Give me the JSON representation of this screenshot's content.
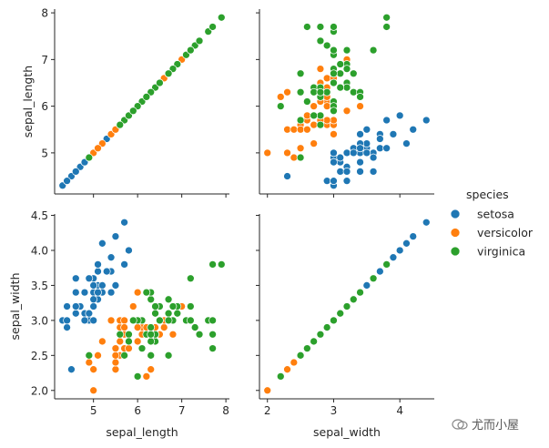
{
  "chart_data": {
    "type": "scatter",
    "title": "",
    "legend": {
      "title": "species",
      "placement": "center-right",
      "entries": [
        {
          "name": "setosa",
          "color": "#1f77b4"
        },
        {
          "name": "versicolor",
          "color": "#ff7f0e"
        },
        {
          "name": "virginica",
          "color": "#2ca02c"
        }
      ]
    },
    "variables": [
      "sepal_length",
      "sepal_width"
    ],
    "axes": {
      "sepal_length": {
        "ticks": [
          5,
          6,
          7,
          8
        ],
        "tick_labels": [
          "5",
          "6",
          "7",
          "8"
        ],
        "lim": [
          4.12,
          8.08
        ]
      },
      "sepal_width": {
        "ticks": [
          2,
          3,
          4
        ],
        "tick_labels": [
          "2",
          "3",
          "4"
        ],
        "lim": [
          1.88,
          4.52
        ],
        "ticks_y": [
          2.0,
          2.5,
          3.0,
          3.5,
          4.0,
          4.5
        ],
        "tick_labels_y": [
          "2.0",
          "2.5",
          "3.0",
          "3.5",
          "4.0",
          "4.5"
        ]
      }
    },
    "grid": false,
    "series": [
      {
        "name": "setosa",
        "points": [
          [
            5.1,
            3.5
          ],
          [
            4.9,
            3.0
          ],
          [
            4.7,
            3.2
          ],
          [
            4.6,
            3.1
          ],
          [
            5.0,
            3.6
          ],
          [
            5.4,
            3.9
          ],
          [
            4.6,
            3.4
          ],
          [
            5.0,
            3.4
          ],
          [
            4.4,
            2.9
          ],
          [
            4.9,
            3.1
          ],
          [
            5.4,
            3.7
          ],
          [
            4.8,
            3.4
          ],
          [
            4.8,
            3.0
          ],
          [
            4.3,
            3.0
          ],
          [
            5.8,
            4.0
          ],
          [
            5.7,
            4.4
          ],
          [
            5.4,
            3.9
          ],
          [
            5.1,
            3.5
          ],
          [
            5.7,
            3.8
          ],
          [
            5.1,
            3.8
          ],
          [
            5.4,
            3.4
          ],
          [
            5.1,
            3.7
          ],
          [
            4.6,
            3.6
          ],
          [
            5.1,
            3.3
          ],
          [
            4.8,
            3.4
          ],
          [
            5.0,
            3.0
          ],
          [
            5.0,
            3.4
          ],
          [
            5.2,
            3.5
          ],
          [
            5.2,
            3.4
          ],
          [
            4.7,
            3.2
          ],
          [
            4.8,
            3.1
          ],
          [
            5.4,
            3.4
          ],
          [
            5.2,
            4.1
          ],
          [
            5.5,
            4.2
          ],
          [
            4.9,
            3.1
          ],
          [
            5.0,
            3.2
          ],
          [
            5.5,
            3.5
          ],
          [
            4.9,
            3.6
          ],
          [
            4.4,
            3.0
          ],
          [
            5.1,
            3.4
          ],
          [
            5.0,
            3.5
          ],
          [
            4.5,
            2.3
          ],
          [
            4.4,
            3.2
          ],
          [
            5.0,
            3.5
          ],
          [
            5.1,
            3.8
          ],
          [
            4.8,
            3.0
          ],
          [
            5.1,
            3.8
          ],
          [
            4.6,
            3.2
          ],
          [
            5.3,
            3.7
          ],
          [
            5.0,
            3.3
          ]
        ]
      },
      {
        "name": "versicolor",
        "points": [
          [
            7.0,
            3.2
          ],
          [
            6.4,
            3.2
          ],
          [
            6.9,
            3.1
          ],
          [
            5.5,
            2.3
          ],
          [
            6.5,
            2.8
          ],
          [
            5.7,
            2.8
          ],
          [
            6.3,
            3.3
          ],
          [
            4.9,
            2.4
          ],
          [
            6.6,
            2.9
          ],
          [
            5.2,
            2.7
          ],
          [
            5.0,
            2.0
          ],
          [
            5.9,
            3.0
          ],
          [
            6.0,
            2.2
          ],
          [
            6.1,
            2.9
          ],
          [
            5.6,
            2.9
          ],
          [
            6.7,
            3.1
          ],
          [
            5.6,
            3.0
          ],
          [
            5.8,
            2.7
          ],
          [
            6.2,
            2.2
          ],
          [
            5.6,
            2.5
          ],
          [
            5.9,
            3.2
          ],
          [
            6.1,
            2.8
          ],
          [
            6.3,
            2.5
          ],
          [
            6.1,
            2.8
          ],
          [
            6.4,
            2.9
          ],
          [
            6.6,
            3.0
          ],
          [
            6.8,
            2.8
          ],
          [
            6.7,
            3.0
          ],
          [
            6.0,
            2.9
          ],
          [
            5.7,
            2.6
          ],
          [
            5.5,
            2.4
          ],
          [
            5.5,
            2.4
          ],
          [
            5.8,
            2.7
          ],
          [
            6.0,
            2.7
          ],
          [
            5.4,
            3.0
          ],
          [
            6.0,
            3.4
          ],
          [
            6.7,
            3.1
          ],
          [
            6.3,
            2.3
          ],
          [
            5.6,
            3.0
          ],
          [
            5.5,
            2.5
          ],
          [
            5.5,
            2.6
          ],
          [
            6.1,
            3.0
          ],
          [
            5.8,
            2.6
          ],
          [
            5.0,
            2.3
          ],
          [
            5.6,
            2.7
          ],
          [
            5.7,
            3.0
          ],
          [
            5.7,
            2.9
          ],
          [
            6.2,
            2.9
          ],
          [
            5.1,
            2.5
          ],
          [
            5.7,
            2.8
          ]
        ]
      },
      {
        "name": "virginica",
        "points": [
          [
            6.3,
            3.3
          ],
          [
            5.8,
            2.7
          ],
          [
            7.1,
            3.0
          ],
          [
            6.3,
            2.9
          ],
          [
            6.5,
            3.0
          ],
          [
            7.6,
            3.0
          ],
          [
            4.9,
            2.5
          ],
          [
            7.3,
            2.9
          ],
          [
            6.7,
            2.5
          ],
          [
            7.2,
            3.6
          ],
          [
            6.5,
            3.2
          ],
          [
            6.4,
            2.7
          ],
          [
            6.8,
            3.0
          ],
          [
            5.7,
            2.5
          ],
          [
            5.8,
            2.8
          ],
          [
            6.4,
            3.2
          ],
          [
            6.5,
            3.0
          ],
          [
            7.7,
            3.8
          ],
          [
            7.7,
            2.6
          ],
          [
            6.0,
            2.2
          ],
          [
            6.9,
            3.2
          ],
          [
            5.6,
            2.8
          ],
          [
            7.7,
            2.8
          ],
          [
            6.3,
            2.7
          ],
          [
            6.7,
            3.3
          ],
          [
            7.2,
            3.2
          ],
          [
            6.2,
            2.8
          ],
          [
            6.1,
            3.0
          ],
          [
            6.4,
            2.8
          ],
          [
            7.2,
            3.0
          ],
          [
            7.4,
            2.8
          ],
          [
            7.9,
            3.8
          ],
          [
            6.4,
            2.8
          ],
          [
            6.3,
            2.8
          ],
          [
            6.1,
            2.6
          ],
          [
            7.7,
            3.0
          ],
          [
            6.3,
            3.4
          ],
          [
            6.4,
            3.1
          ],
          [
            6.0,
            3.0
          ],
          [
            6.9,
            3.1
          ],
          [
            6.7,
            3.1
          ],
          [
            6.9,
            3.1
          ],
          [
            5.8,
            2.7
          ],
          [
            6.8,
            3.2
          ],
          [
            6.7,
            3.3
          ],
          [
            6.7,
            3.0
          ],
          [
            6.3,
            2.5
          ],
          [
            6.5,
            3.0
          ],
          [
            6.2,
            3.4
          ],
          [
            5.9,
            3.0
          ]
        ]
      }
    ]
  },
  "watermark": {
    "text": "尤而小屋"
  }
}
